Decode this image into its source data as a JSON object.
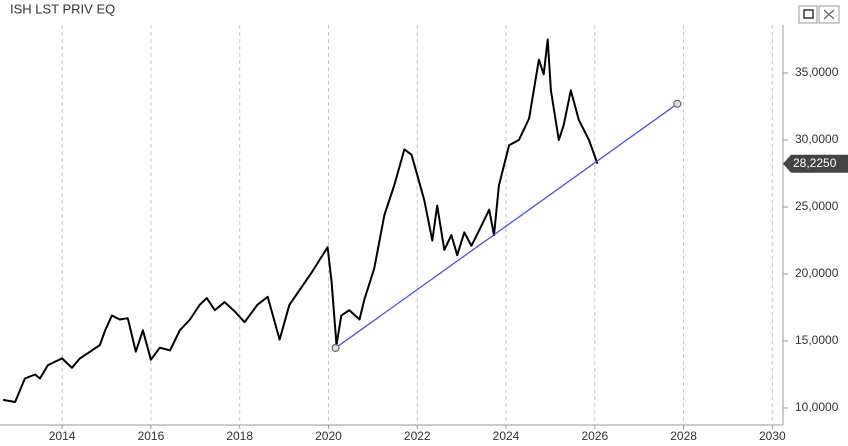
{
  "chart_data": {
    "type": "line",
    "title": "ISH LST PRIV EQ",
    "x": [
      2012.67,
      2012.94,
      2013.16,
      2013.39,
      2013.5,
      2013.68,
      2014.0,
      2014.22,
      2014.4,
      2014.63,
      2014.85,
      2014.97,
      2015.12,
      2015.3,
      2015.48,
      2015.66,
      2015.82,
      2016.0,
      2016.2,
      2016.43,
      2016.65,
      2016.88,
      2017.1,
      2017.26,
      2017.44,
      2017.66,
      2017.89,
      2018.11,
      2018.4,
      2018.63,
      2018.9,
      2019.12,
      2019.35,
      2019.62,
      2019.98,
      2020.07,
      2020.18,
      2020.29,
      2020.47,
      2020.7,
      2020.81,
      2021.03,
      2021.26,
      2021.48,
      2021.71,
      2021.87,
      2022.0,
      2022.16,
      2022.34,
      2022.45,
      2022.61,
      2022.77,
      2022.9,
      2023.06,
      2023.22,
      2023.4,
      2023.62,
      2023.73,
      2023.84,
      2024.07,
      2024.29,
      2024.52,
      2024.74,
      2024.85,
      2024.94,
      2025.01,
      2025.19,
      2025.3,
      2025.46,
      2025.64,
      2025.87,
      2026.06
    ],
    "series": [
      {
        "name": "ISH LST PRIV EQ",
        "color": "#000000",
        "values": [
          10.6,
          10.45,
          12.2,
          12.5,
          12.2,
          13.2,
          13.7,
          13.0,
          13.7,
          14.2,
          14.7,
          15.8,
          16.9,
          16.6,
          16.7,
          14.2,
          15.8,
          13.6,
          14.5,
          14.3,
          15.8,
          16.6,
          17.7,
          18.2,
          17.3,
          17.9,
          17.2,
          16.4,
          17.7,
          18.3,
          15.1,
          17.7,
          18.8,
          20.1,
          22.0,
          19.4,
          14.7,
          16.9,
          17.3,
          16.6,
          18.1,
          20.4,
          24.4,
          26.6,
          29.3,
          28.9,
          27.4,
          25.5,
          22.5,
          25.1,
          21.8,
          22.9,
          21.4,
          23.1,
          22.1,
          23.3,
          24.8,
          22.9,
          26.6,
          29.6,
          30.0,
          31.6,
          36.0,
          34.9,
          37.5,
          33.7,
          30.0,
          31.1,
          33.7,
          31.5,
          30.0,
          28.225
        ]
      }
    ],
    "last_value": {
      "value": 28.225,
      "label": "28,2250"
    },
    "trendline": {
      "x": [
        2020.16,
        2027.86
      ],
      "values": [
        14.48,
        32.7
      ],
      "color": "#4a52e8"
    },
    "xlim": [
      2012.6,
      2030.24
    ],
    "xticks": [
      2014,
      2016,
      2018,
      2020,
      2022,
      2024,
      2026,
      2028,
      2030
    ],
    "ylim": [
      8.73,
      38.58
    ],
    "yticks": [
      {
        "value": 10,
        "label": "10,0000"
      },
      {
        "value": 15,
        "label": "15,0000"
      },
      {
        "value": 20,
        "label": "20,0000"
      },
      {
        "value": 25,
        "label": "25,0000"
      },
      {
        "value": 30,
        "label": "30,0000"
      },
      {
        "value": 35,
        "label": "35,0000"
      }
    ],
    "grid": true
  }
}
